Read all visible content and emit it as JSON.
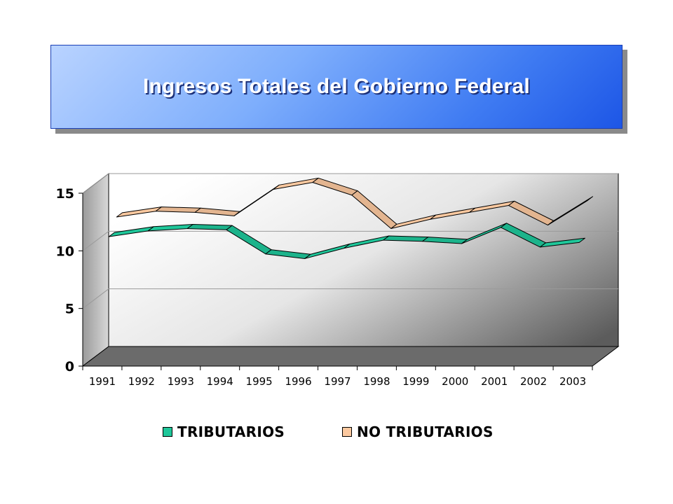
{
  "slide": {
    "title": "Ingresos Totales del Gobierno Federal"
  },
  "colors": {
    "title_gradient": [
      "#b9d3ff",
      "#1d56e6"
    ],
    "tributarios": "#1fc79a",
    "no_tributarios": "#fcc9a0",
    "plot_back_wall": [
      "#ffffff",
      "#5c5c5c"
    ],
    "plot_floor": "#6b6b6b"
  },
  "chart_data": {
    "type": "area",
    "style": "3d-ribbon",
    "title": "",
    "categories": [
      "1991",
      "1992",
      "1993",
      "1994",
      "1995",
      "1996",
      "1997",
      "1998",
      "1999",
      "2000",
      "2001",
      "2002",
      "2003"
    ],
    "series": [
      {
        "name": "TRIBUTARIOS",
        "values": [
          10.8,
          11.3,
          11.5,
          11.4,
          9.3,
          8.9,
          9.8,
          10.5,
          10.4,
          10.2,
          11.6,
          9.9,
          10.3
        ]
      },
      {
        "name": "NO TRIBUTARIOS",
        "values": [
          12.0,
          12.5,
          12.4,
          12.1,
          14.4,
          15.0,
          13.9,
          11.0,
          11.8,
          12.4,
          13.0,
          11.3,
          13.4
        ]
      }
    ],
    "yticks": [
      "0",
      "5",
      "10",
      "15"
    ],
    "ylim": [
      0,
      15
    ],
    "xlabel": "",
    "ylabel": "",
    "grid": true,
    "legend_position": "bottom"
  }
}
